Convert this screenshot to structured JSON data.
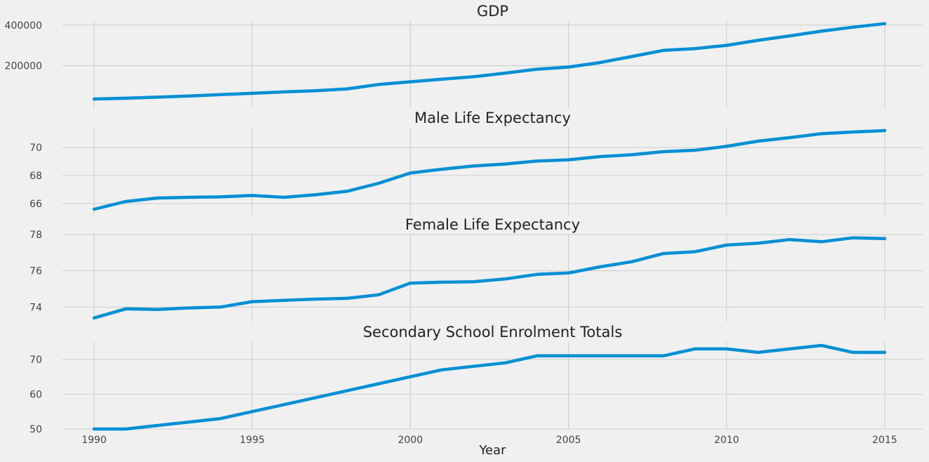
{
  "colors": {
    "background": "#f0f0f0",
    "grid": "#cbcbcb",
    "line": "#008fd5"
  },
  "chart_data": [
    {
      "type": "line",
      "title": "GDP",
      "x": [
        1990,
        1991,
        1992,
        1993,
        1994,
        1995,
        1996,
        1997,
        1998,
        1999,
        2000,
        2001,
        2002,
        2003,
        2004,
        2005,
        2006,
        2007,
        2008,
        2009,
        2010,
        2011,
        2012,
        2013,
        2014,
        2015
      ],
      "series": [
        {
          "values": [
            35000,
            39000,
            44000,
            50000,
            57000,
            63000,
            70000,
            76000,
            85000,
            107000,
            120000,
            133000,
            145000,
            163000,
            182000,
            193000,
            215000,
            245000,
            275000,
            284000,
            300000,
            325000,
            347000,
            370000,
            390000,
            407000
          ]
        }
      ],
      "xlim": [
        1989,
        2016.2
      ],
      "ylim": [
        -10000,
        420000
      ],
      "yticks": [
        200000,
        400000
      ],
      "ytick_labels": [
        "200000",
        "400000"
      ],
      "grid": true
    },
    {
      "type": "line",
      "title": "Male Life Expectancy",
      "x": [
        1990,
        1991,
        1992,
        1993,
        1994,
        1995,
        1996,
        1997,
        1998,
        1999,
        2000,
        2001,
        2002,
        2003,
        2004,
        2005,
        2006,
        2007,
        2008,
        2009,
        2010,
        2011,
        2012,
        2013,
        2014,
        2015
      ],
      "series": [
        {
          "values": [
            65.6,
            66.15,
            66.4,
            66.45,
            66.48,
            66.58,
            66.45,
            66.63,
            66.88,
            67.45,
            68.18,
            68.45,
            68.68,
            68.82,
            69.03,
            69.12,
            69.35,
            69.48,
            69.7,
            69.8,
            70.08,
            70.45,
            70.7,
            70.98,
            71.1,
            71.2
          ]
        }
      ],
      "xlim": [
        1989,
        2016.2
      ],
      "ylim": [
        65.2,
        71.4
      ],
      "yticks": [
        66,
        68,
        70
      ],
      "ytick_labels": [
        "66",
        "68",
        "70"
      ],
      "grid": true
    },
    {
      "type": "line",
      "title": "Female Life Expectancy",
      "x": [
        1990,
        1991,
        1992,
        1993,
        1994,
        1995,
        1996,
        1997,
        1998,
        1999,
        2000,
        2001,
        2002,
        2003,
        2004,
        2005,
        2006,
        2007,
        2008,
        2009,
        2010,
        2011,
        2012,
        2013,
        2014,
        2015
      ],
      "series": [
        {
          "values": [
            73.4,
            73.9,
            73.87,
            73.95,
            74.0,
            74.3,
            74.37,
            74.44,
            74.48,
            74.68,
            75.32,
            75.37,
            75.4,
            75.55,
            75.8,
            75.88,
            76.22,
            76.5,
            76.95,
            77.05,
            77.42,
            77.52,
            77.72,
            77.6,
            77.82,
            77.78
          ]
        }
      ],
      "xlim": [
        1989,
        2016.2
      ],
      "ylim": [
        73.2,
        78.0
      ],
      "yticks": [
        74,
        76,
        78
      ],
      "ytick_labels": [
        "74",
        "76",
        "78"
      ],
      "grid": true
    },
    {
      "type": "line",
      "title": "Secondary School Enrolment Totals",
      "x": [
        1990,
        1991,
        1992,
        1993,
        1994,
        1995,
        1996,
        1997,
        1998,
        1999,
        2000,
        2001,
        2002,
        2003,
        2004,
        2005,
        2006,
        2007,
        2008,
        2009,
        2010,
        2011,
        2012,
        2013,
        2014,
        2015
      ],
      "series": [
        {
          "values": [
            50,
            50,
            51,
            52,
            53,
            55,
            57,
            59,
            61,
            63,
            65,
            67,
            68,
            69,
            71,
            71,
            71,
            71,
            71,
            73,
            73,
            72,
            73,
            74,
            72,
            72
          ]
        }
      ],
      "xlim": [
        1989,
        2016.2
      ],
      "ylim": [
        50,
        75
      ],
      "yticks": [
        50,
        60,
        70
      ],
      "ytick_labels": [
        "50",
        "60",
        "70"
      ],
      "xticks": [
        1990,
        1995,
        2000,
        2005,
        2010,
        2015
      ],
      "xtick_labels": [
        "1990",
        "1995",
        "2000",
        "2005",
        "2010",
        "2015"
      ],
      "xlabel": "Year",
      "grid": true
    }
  ]
}
